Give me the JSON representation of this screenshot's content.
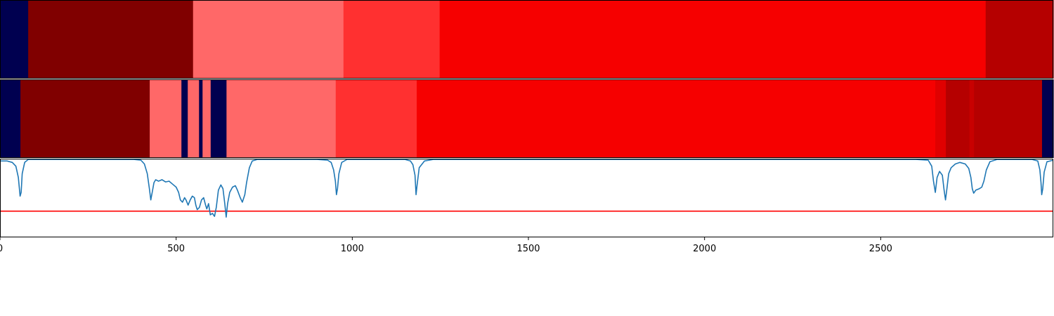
{
  "chart_data": [
    {
      "type": "heatmap",
      "title": "",
      "xlim": [
        0,
        2990
      ],
      "segments": [
        {
          "start": 0,
          "end": 80,
          "color": "#000050"
        },
        {
          "start": 80,
          "end": 548,
          "color": "#800000"
        },
        {
          "start": 548,
          "end": 975,
          "color": "#ff6868"
        },
        {
          "start": 975,
          "end": 1248,
          "color": "#ff3030"
        },
        {
          "start": 1248,
          "end": 2798,
          "color": "#f60000"
        },
        {
          "start": 2798,
          "end": 2990,
          "color": "#b50000"
        }
      ]
    },
    {
      "type": "heatmap",
      "title": "",
      "xlim": [
        0,
        2990
      ],
      "segments": [
        {
          "start": 0,
          "end": 58,
          "color": "#000050"
        },
        {
          "start": 58,
          "end": 425,
          "color": "#800000"
        },
        {
          "start": 425,
          "end": 515,
          "color": "#ff6868"
        },
        {
          "start": 515,
          "end": 533,
          "color": "#000050"
        },
        {
          "start": 533,
          "end": 565,
          "color": "#ff6868"
        },
        {
          "start": 565,
          "end": 575,
          "color": "#000050"
        },
        {
          "start": 575,
          "end": 598,
          "color": "#ff6868"
        },
        {
          "start": 598,
          "end": 643,
          "color": "#000050"
        },
        {
          "start": 643,
          "end": 953,
          "color": "#ff6868"
        },
        {
          "start": 953,
          "end": 1183,
          "color": "#ff3030"
        },
        {
          "start": 1183,
          "end": 2655,
          "color": "#f60000"
        },
        {
          "start": 2655,
          "end": 2685,
          "color": "#e00000"
        },
        {
          "start": 2685,
          "end": 2752,
          "color": "#b50000"
        },
        {
          "start": 2752,
          "end": 2765,
          "color": "#c80000"
        },
        {
          "start": 2765,
          "end": 2958,
          "color": "#b50000"
        },
        {
          "start": 2958,
          "end": 2990,
          "color": "#000050"
        }
      ]
    },
    {
      "type": "line",
      "title": "",
      "xlabel": "",
      "ylabel": "",
      "xlim": [
        0,
        2990
      ],
      "ylim": [
        -0.05,
        1.0
      ],
      "xticks": [
        0,
        500,
        1000,
        1500,
        2000,
        2500
      ],
      "threshold": {
        "y": 0.3,
        "color": "#ff0000"
      },
      "series": [
        {
          "color": "#1f77b4",
          "points": [
            [
              0,
              0.97
            ],
            [
              20,
              0.97
            ],
            [
              35,
              0.95
            ],
            [
              45,
              0.9
            ],
            [
              52,
              0.75
            ],
            [
              57,
              0.5
            ],
            [
              60,
              0.55
            ],
            [
              63,
              0.8
            ],
            [
              70,
              0.95
            ],
            [
              80,
              0.99
            ],
            [
              200,
              0.99
            ],
            [
              380,
              0.99
            ],
            [
              400,
              0.98
            ],
            [
              410,
              0.93
            ],
            [
              418,
              0.8
            ],
            [
              424,
              0.6
            ],
            [
              428,
              0.45
            ],
            [
              432,
              0.55
            ],
            [
              437,
              0.68
            ],
            [
              442,
              0.72
            ],
            [
              450,
              0.7
            ],
            [
              460,
              0.72
            ],
            [
              470,
              0.69
            ],
            [
              480,
              0.7
            ],
            [
              490,
              0.66
            ],
            [
              500,
              0.62
            ],
            [
              507,
              0.55
            ],
            [
              512,
              0.45
            ],
            [
              518,
              0.42
            ],
            [
              524,
              0.48
            ],
            [
              528,
              0.45
            ],
            [
              534,
              0.38
            ],
            [
              540,
              0.45
            ],
            [
              546,
              0.5
            ],
            [
              552,
              0.48
            ],
            [
              556,
              0.38
            ],
            [
              560,
              0.32
            ],
            [
              566,
              0.35
            ],
            [
              572,
              0.45
            ],
            [
              578,
              0.48
            ],
            [
              583,
              0.39
            ],
            [
              587,
              0.33
            ],
            [
              592,
              0.4
            ],
            [
              597,
              0.25
            ],
            [
              603,
              0.27
            ],
            [
              609,
              0.23
            ],
            [
              614,
              0.35
            ],
            [
              620,
              0.58
            ],
            [
              627,
              0.65
            ],
            [
              633,
              0.6
            ],
            [
              638,
              0.4
            ],
            [
              642,
              0.22
            ],
            [
              646,
              0.4
            ],
            [
              652,
              0.55
            ],
            [
              660,
              0.62
            ],
            [
              668,
              0.64
            ],
            [
              674,
              0.58
            ],
            [
              682,
              0.48
            ],
            [
              688,
              0.42
            ],
            [
              695,
              0.52
            ],
            [
              700,
              0.68
            ],
            [
              708,
              0.88
            ],
            [
              716,
              0.97
            ],
            [
              730,
              0.99
            ],
            [
              900,
              0.99
            ],
            [
              930,
              0.98
            ],
            [
              940,
              0.95
            ],
            [
              947,
              0.85
            ],
            [
              952,
              0.7
            ],
            [
              955,
              0.52
            ],
            [
              958,
              0.6
            ],
            [
              962,
              0.8
            ],
            [
              970,
              0.95
            ],
            [
              985,
              0.99
            ],
            [
              1150,
              0.99
            ],
            [
              1165,
              0.97
            ],
            [
              1172,
              0.92
            ],
            [
              1178,
              0.78
            ],
            [
              1181,
              0.52
            ],
            [
              1184,
              0.65
            ],
            [
              1190,
              0.88
            ],
            [
              1205,
              0.97
            ],
            [
              1230,
              0.99
            ],
            [
              2600,
              0.99
            ],
            [
              2635,
              0.98
            ],
            [
              2645,
              0.9
            ],
            [
              2650,
              0.7
            ],
            [
              2655,
              0.55
            ],
            [
              2660,
              0.75
            ],
            [
              2667,
              0.83
            ],
            [
              2675,
              0.78
            ],
            [
              2680,
              0.58
            ],
            [
              2684,
              0.45
            ],
            [
              2688,
              0.6
            ],
            [
              2693,
              0.8
            ],
            [
              2700,
              0.88
            ],
            [
              2712,
              0.93
            ],
            [
              2725,
              0.95
            ],
            [
              2740,
              0.93
            ],
            [
              2750,
              0.87
            ],
            [
              2756,
              0.75
            ],
            [
              2760,
              0.6
            ],
            [
              2764,
              0.54
            ],
            [
              2770,
              0.58
            ],
            [
              2780,
              0.6
            ],
            [
              2787,
              0.62
            ],
            [
              2793,
              0.7
            ],
            [
              2800,
              0.85
            ],
            [
              2810,
              0.96
            ],
            [
              2830,
              0.99
            ],
            [
              2930,
              0.99
            ],
            [
              2946,
              0.97
            ],
            [
              2952,
              0.85
            ],
            [
              2955,
              0.68
            ],
            [
              2957,
              0.52
            ],
            [
              2960,
              0.6
            ],
            [
              2964,
              0.82
            ],
            [
              2972,
              0.96
            ],
            [
              2990,
              0.98
            ]
          ]
        }
      ]
    }
  ]
}
